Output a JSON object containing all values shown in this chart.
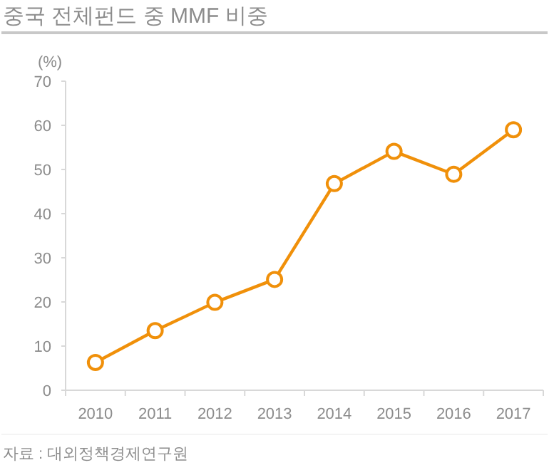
{
  "chart_data": {
    "type": "line",
    "title": "중국 전체펀드 중 MMF 비중",
    "ylabel": "(%)",
    "categories": [
      "2010",
      "2011",
      "2012",
      "2013",
      "2014",
      "2015",
      "2016",
      "2017"
    ],
    "series": [
      {
        "color": "#f0900a",
        "values": [
          6.3,
          13.5,
          19.9,
          25.1,
          46.8,
          54.1,
          48.9,
          59.0
        ]
      }
    ],
    "ylim": [
      0,
      70
    ],
    "yticks": [
      0,
      10,
      20,
      30,
      40,
      50,
      60,
      70
    ],
    "grid": false,
    "marker": "circle",
    "line_style": "solid",
    "annotations": [
      "자료 : 대외정책경제연구원"
    ]
  }
}
